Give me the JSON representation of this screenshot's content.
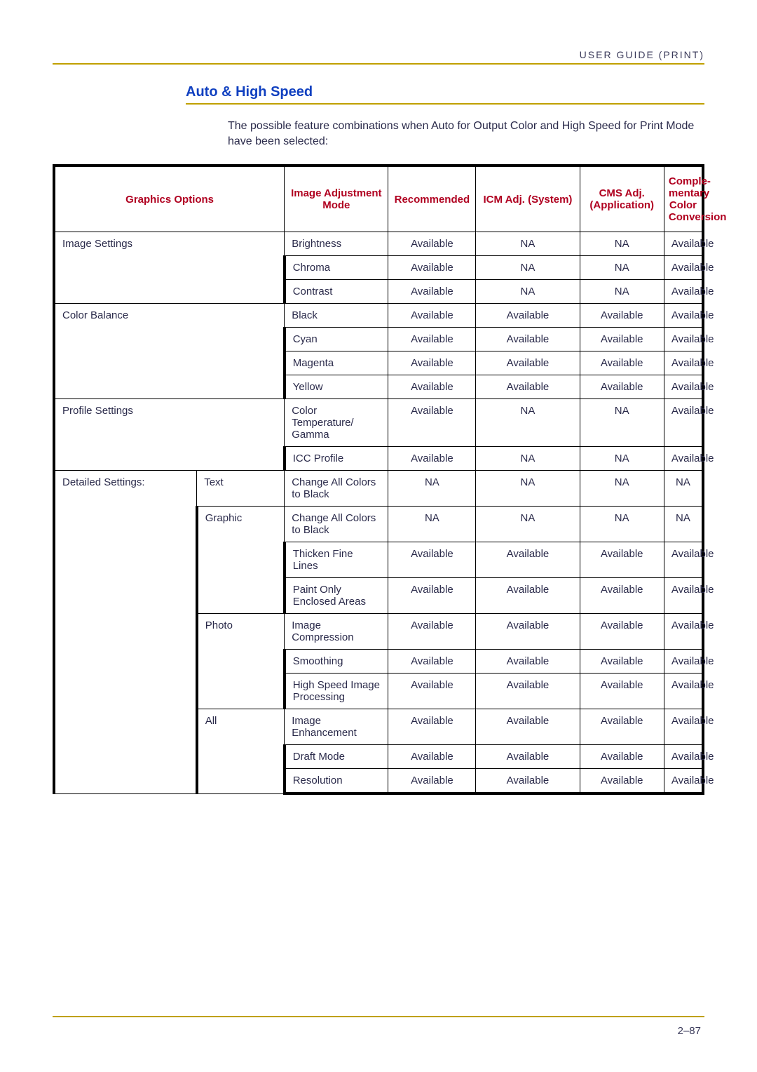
{
  "header": "USER GUIDE (PRINT)",
  "sectionTitle": "Auto & High Speed",
  "intro": "The possible feature combinations when Auto for Output Color and High Speed for Print Mode have been selected:",
  "columns": {
    "graphicsOptions": "Graphics Options",
    "imageAdjustmentMode": "Image Adjustment Mode",
    "recommended": "Recommended",
    "icmAdj": "ICM Adj. (System)",
    "cmsAdj": "CMS Adj. (Application)",
    "complementary": "Comple-mentary Color Conversion"
  },
  "categories": {
    "imageSettings": "Image Settings",
    "colorBalance": "Color Balance",
    "profileSettings": "Profile Settings",
    "detailed": "Detailed Settings:",
    "detailedSubs": {
      "text": "Text",
      "graphic": "Graphic",
      "photo": "Photo",
      "all": "All"
    }
  },
  "rows": [
    {
      "mode": "Brightness",
      "rec": "Available",
      "icm": "NA",
      "cms": "NA",
      "comp": "Available"
    },
    {
      "mode": "Chroma",
      "rec": "Available",
      "icm": "NA",
      "cms": "NA",
      "comp": "Available"
    },
    {
      "mode": "Contrast",
      "rec": "Available",
      "icm": "NA",
      "cms": "NA",
      "comp": "Available"
    },
    {
      "mode": "Black",
      "rec": "Available",
      "icm": "Available",
      "cms": "Available",
      "comp": "Available"
    },
    {
      "mode": "Cyan",
      "rec": "Available",
      "icm": "Available",
      "cms": "Available",
      "comp": "Available"
    },
    {
      "mode": "Magenta",
      "rec": "Available",
      "icm": "Available",
      "cms": "Available",
      "comp": "Available"
    },
    {
      "mode": "Yellow",
      "rec": "Available",
      "icm": "Available",
      "cms": "Available",
      "comp": "Available"
    },
    {
      "mode": "Color Temperature/ Gamma",
      "rec": "Available",
      "icm": "NA",
      "cms": "NA",
      "comp": "Available"
    },
    {
      "mode": "ICC Profile",
      "rec": "Available",
      "icm": "NA",
      "cms": "NA",
      "comp": "Available"
    },
    {
      "mode": "Change All Colors to Black",
      "rec": "NA",
      "icm": "NA",
      "cms": "NA",
      "comp": "NA"
    },
    {
      "mode": "Change All Colors to Black",
      "rec": "NA",
      "icm": "NA",
      "cms": "NA",
      "comp": "NA"
    },
    {
      "mode": "Thicken Fine Lines",
      "rec": "Available",
      "icm": "Available",
      "cms": "Available",
      "comp": "Available"
    },
    {
      "mode": "Paint Only Enclosed Areas",
      "rec": "Available",
      "icm": "Available",
      "cms": "Available",
      "comp": "Available"
    },
    {
      "mode": "Image Compression",
      "rec": "Available",
      "icm": "Available",
      "cms": "Available",
      "comp": "Available"
    },
    {
      "mode": "Smoothing",
      "rec": "Available",
      "icm": "Available",
      "cms": "Available",
      "comp": "Available"
    },
    {
      "mode": "High Speed Image Processing",
      "rec": "Available",
      "icm": "Available",
      "cms": "Available",
      "comp": "Available"
    },
    {
      "mode": "Image Enhancement",
      "rec": "Available",
      "icm": "Available",
      "cms": "Available",
      "comp": "Available"
    },
    {
      "mode": "Draft Mode",
      "rec": "Available",
      "icm": "Available",
      "cms": "Available",
      "comp": "Available"
    },
    {
      "mode": "Resolution",
      "rec": "Available",
      "icm": "Available",
      "cms": "Available",
      "comp": "Available"
    }
  ],
  "pageNumber": "2–87"
}
